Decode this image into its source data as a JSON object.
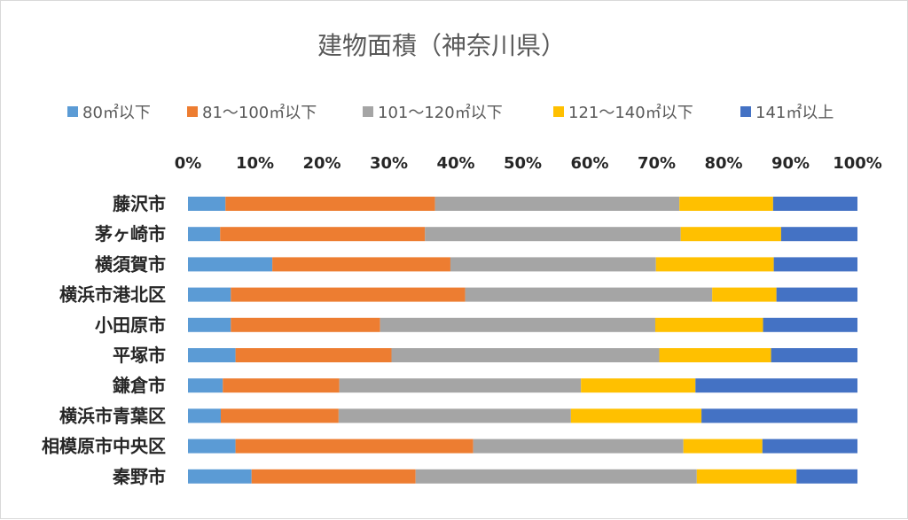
{
  "chart_data": {
    "type": "bar",
    "orientation": "horizontal",
    "stacked": "percent",
    "title": "建物面積（神奈川県）",
    "xlabel": "",
    "ylabel": "",
    "xlim": [
      0,
      100
    ],
    "x_ticks": [
      "0%",
      "10%",
      "20%",
      "30%",
      "40%",
      "50%",
      "60%",
      "70%",
      "80%",
      "90%",
      "100%"
    ],
    "x_axis_position": "top",
    "legend_position": "top",
    "grid": false,
    "categories": [
      "藤沢市",
      "茅ヶ崎市",
      "横須賀市",
      "横浜市港北区",
      "小田原市",
      "平塚市",
      "鎌倉市",
      "横浜市青葉区",
      "相模原市中央区",
      "秦野市"
    ],
    "series": [
      {
        "name": "80㎡以下",
        "color": "#5b9bd5",
        "values": [
          5.6,
          4.8,
          12.6,
          6.4,
          6.4,
          7.1,
          5.2,
          4.9,
          7.1,
          9.5
        ]
      },
      {
        "name": "81〜100㎡以下",
        "color": "#ed7d31",
        "values": [
          31.3,
          30.6,
          26.6,
          35.0,
          22.3,
          23.3,
          17.4,
          17.6,
          35.5,
          24.5
        ]
      },
      {
        "name": "101〜120㎡以下",
        "color": "#a5a5a5",
        "values": [
          36.5,
          38.2,
          30.7,
          36.9,
          41.1,
          40.0,
          36.1,
          34.7,
          31.4,
          42.0
        ]
      },
      {
        "name": "121〜140㎡以下",
        "color": "#ffc000",
        "values": [
          14.0,
          15.0,
          17.6,
          9.6,
          16.1,
          16.7,
          17.1,
          19.5,
          11.8,
          14.9
        ]
      },
      {
        "name": "141㎡以上",
        "color": "#4472c4",
        "values": [
          12.6,
          11.4,
          12.5,
          12.1,
          14.1,
          12.9,
          24.2,
          23.3,
          14.2,
          9.1
        ]
      }
    ]
  }
}
